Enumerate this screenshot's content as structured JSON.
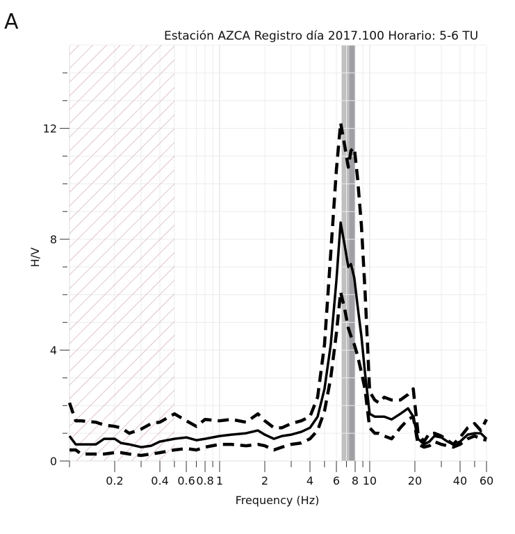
{
  "panel_label": "A",
  "chart_data": {
    "type": "line",
    "title": "Estación AZCA Registro día 2017.100 Horario: 5-6 TU",
    "xlabel": "Frequency (Hz)",
    "ylabel": "H/V",
    "xscale": "log",
    "xlim": [
      0.1,
      60
    ],
    "ylim": [
      0,
      15
    ],
    "grid": true,
    "x_tick_labels": [
      {
        "value": 0.2,
        "label": "0.2"
      },
      {
        "value": 0.4,
        "label": "0.4"
      },
      {
        "value": 0.6,
        "label": "0.6"
      },
      {
        "value": 0.8,
        "label": "0.8"
      },
      {
        "value": 1,
        "label": "1"
      },
      {
        "value": 2,
        "label": "2"
      },
      {
        "value": 4,
        "label": "4"
      },
      {
        "value": 6,
        "label": "6"
      },
      {
        "value": 8,
        "label": "8"
      },
      {
        "value": 10,
        "label": "10"
      },
      {
        "value": 20,
        "label": "20"
      },
      {
        "value": 40,
        "label": "40"
      },
      {
        "value": 60,
        "label": "60"
      }
    ],
    "y_tick_labels": [
      {
        "value": 0,
        "label": "0"
      },
      {
        "value": 4,
        "label": "4"
      },
      {
        "value": 8,
        "label": "8"
      },
      {
        "value": 12,
        "label": "12"
      }
    ],
    "y_minor_ticks": [
      1,
      2,
      3,
      5,
      6,
      7,
      9,
      10,
      11,
      13,
      14
    ],
    "hatched_region": {
      "x_from": 0.1,
      "x_to": 0.5,
      "color": "#c8a0b0",
      "meaning": "invalid low-frequency range"
    },
    "peak_bands": [
      {
        "x_from": 6.5,
        "x_to": 7.3,
        "color": "#c0c0c0"
      },
      {
        "x_from": 7.3,
        "x_to": 8.0,
        "color": "#a0a0a4"
      }
    ],
    "series": [
      {
        "name": "H/V mean",
        "style": "solid",
        "x": [
          0.1,
          0.11,
          0.12,
          0.15,
          0.17,
          0.2,
          0.22,
          0.25,
          0.3,
          0.35,
          0.4,
          0.5,
          0.6,
          0.7,
          0.8,
          1.0,
          1.2,
          1.5,
          1.8,
          2.0,
          2.3,
          2.6,
          3.0,
          3.5,
          4.0,
          4.5,
          5.0,
          5.5,
          6.0,
          6.4,
          6.8,
          7.2,
          7.5,
          7.9,
          8.3,
          8.8,
          9.3,
          10,
          10.8,
          11.5,
          12.5,
          14,
          16,
          18,
          19.5,
          21,
          23,
          25,
          27,
          30,
          33,
          36,
          40,
          45,
          50,
          55,
          60
        ],
        "y": [
          0.9,
          0.6,
          0.6,
          0.6,
          0.8,
          0.8,
          0.65,
          0.6,
          0.5,
          0.55,
          0.7,
          0.8,
          0.85,
          0.75,
          0.8,
          0.9,
          0.95,
          1.0,
          1.1,
          0.95,
          0.8,
          0.9,
          0.95,
          1.05,
          1.2,
          1.6,
          2.6,
          4.2,
          6.5,
          8.6,
          7.8,
          7.0,
          7.1,
          6.6,
          5.6,
          4.5,
          3.2,
          1.7,
          1.6,
          1.6,
          1.6,
          1.5,
          1.7,
          1.9,
          1.6,
          0.8,
          0.6,
          0.7,
          0.9,
          0.85,
          0.7,
          0.6,
          0.7,
          0.95,
          1.0,
          1.0,
          0.8
        ]
      },
      {
        "name": "H/V + std",
        "style": "dashed",
        "x": [
          0.1,
          0.11,
          0.12,
          0.15,
          0.17,
          0.2,
          0.22,
          0.25,
          0.3,
          0.35,
          0.4,
          0.5,
          0.6,
          0.7,
          0.8,
          1.0,
          1.2,
          1.5,
          1.8,
          2.0,
          2.3,
          2.6,
          3.0,
          3.5,
          4.0,
          4.5,
          5.0,
          5.5,
          6.0,
          6.4,
          6.8,
          7.2,
          7.5,
          7.9,
          8.3,
          8.8,
          9.3,
          10,
          10.8,
          11.5,
          12.5,
          14,
          16,
          18,
          19.5,
          21,
          23,
          25,
          27,
          30,
          33,
          36,
          40,
          45,
          50,
          55,
          60
        ],
        "y": [
          2.1,
          1.45,
          1.45,
          1.4,
          1.3,
          1.25,
          1.2,
          1.0,
          1.15,
          1.35,
          1.4,
          1.7,
          1.45,
          1.25,
          1.5,
          1.45,
          1.5,
          1.4,
          1.7,
          1.45,
          1.2,
          1.2,
          1.35,
          1.45,
          1.6,
          2.3,
          4.2,
          7.5,
          10.5,
          12.2,
          11.4,
          10.6,
          11.2,
          11.3,
          10.2,
          8.5,
          6.2,
          2.5,
          2.2,
          2.1,
          2.3,
          2.2,
          2.2,
          2.4,
          2.6,
          1.0,
          0.7,
          1.0,
          1.0,
          0.9,
          0.75,
          0.6,
          0.85,
          1.2,
          1.35,
          1.1,
          1.5
        ]
      },
      {
        "name": "H/V - std",
        "style": "dashed",
        "x": [
          0.1,
          0.11,
          0.12,
          0.15,
          0.17,
          0.2,
          0.22,
          0.25,
          0.3,
          0.35,
          0.4,
          0.5,
          0.6,
          0.7,
          0.8,
          1.0,
          1.2,
          1.5,
          1.8,
          2.0,
          2.3,
          2.6,
          3.0,
          3.5,
          4.0,
          4.5,
          5.0,
          5.5,
          6.0,
          6.4,
          6.8,
          7.2,
          7.5,
          7.9,
          8.3,
          8.8,
          9.3,
          10,
          10.8,
          11.5,
          12.5,
          14,
          16,
          18,
          19.5,
          21,
          23,
          25,
          27,
          30,
          33,
          36,
          40,
          45,
          50,
          55,
          60
        ],
        "y": [
          0.4,
          0.4,
          0.25,
          0.25,
          0.25,
          0.3,
          0.3,
          0.25,
          0.2,
          0.25,
          0.3,
          0.4,
          0.45,
          0.4,
          0.5,
          0.6,
          0.6,
          0.55,
          0.6,
          0.55,
          0.4,
          0.5,
          0.6,
          0.65,
          0.8,
          1.1,
          1.8,
          3.0,
          4.6,
          6.1,
          5.5,
          4.8,
          4.5,
          4.2,
          3.8,
          3.2,
          2.6,
          1.2,
          1.0,
          1.0,
          0.9,
          0.8,
          1.2,
          1.5,
          1.6,
          0.6,
          0.5,
          0.55,
          0.7,
          0.6,
          0.55,
          0.5,
          0.6,
          0.8,
          0.9,
          0.8,
          0.75
        ]
      }
    ]
  }
}
